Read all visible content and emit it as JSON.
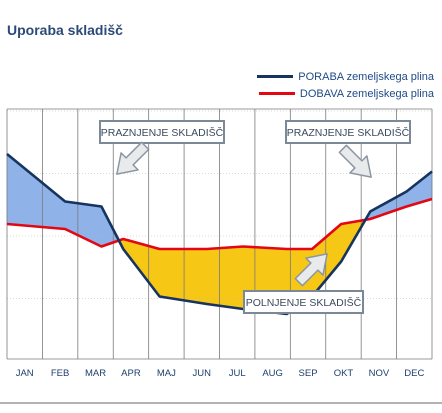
{
  "page_title": "Uporaba skladišč",
  "colors": {
    "title": "#2b4a78",
    "poraba_line": "#17335f",
    "dobava_line": "#e30613",
    "surplus_fill": "#8fb2e8",
    "deficit_fill": "#f6c815",
    "grid": "#7a7a7a",
    "callout_border": "#7a8898"
  },
  "chart_data": {
    "type": "line",
    "categories": [
      "JAN",
      "FEB",
      "MAR",
      "APR",
      "MAJ",
      "JUN",
      "JUL",
      "AUG",
      "SEP",
      "OKT",
      "NOV",
      "DEC"
    ],
    "series": [
      {
        "name": "PORABA zemeljskega plina",
        "x": [
          0.0,
          1.6,
          2.6,
          3.2,
          4.2,
          5.5,
          6.5,
          7.7,
          8.4,
          9.2,
          10.0,
          11.0,
          11.7
        ],
        "values": [
          82,
          63,
          61,
          44,
          25,
          22,
          20,
          18,
          25,
          39,
          59,
          67,
          75
        ]
      },
      {
        "name": "DOBAVA zemeljskega plina",
        "x": [
          0.0,
          1.6,
          2.6,
          3.2,
          4.2,
          5.5,
          6.5,
          7.7,
          8.4,
          9.2,
          10.0,
          11.0,
          11.7
        ],
        "values": [
          54,
          52,
          45,
          48,
          44,
          44,
          45,
          44,
          44,
          54,
          56,
          61,
          64
        ]
      }
    ],
    "xlim": [
      0,
      11.7
    ],
    "ylim": [
      0,
      100
    ],
    "grid": true,
    "legend_placement": "top-right",
    "annotations": [
      {
        "text": "PRAZNJENJE SKLADIŠČ"
      },
      {
        "text": "PRAZNJENJE SKLADIŠČ"
      },
      {
        "text": "POLNJENJE SKLADIŠČ"
      }
    ]
  }
}
